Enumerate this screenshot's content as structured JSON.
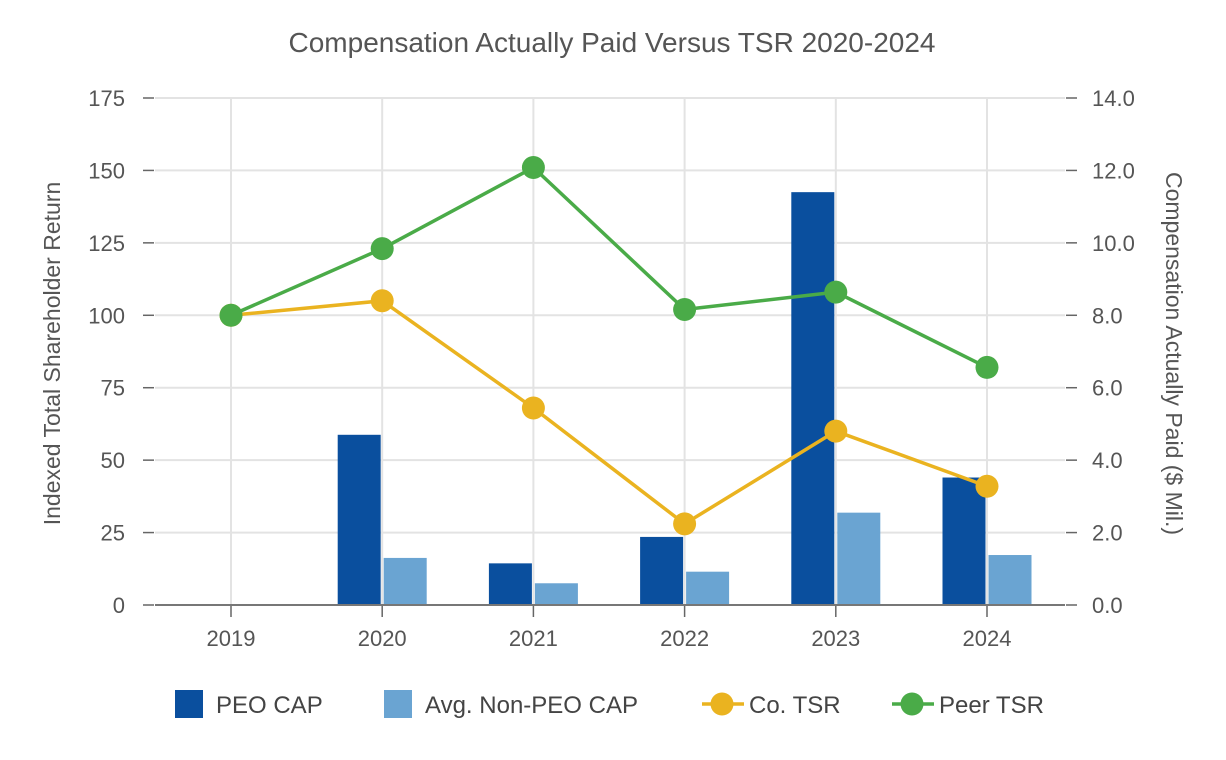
{
  "chart_data": {
    "type": "bar",
    "title": "Compensation Actually Paid Versus TSR 2020-2024",
    "categories": [
      "2019",
      "2020",
      "2021",
      "2022",
      "2023",
      "2024"
    ],
    "left_axis": {
      "label": "Indexed Total Shareholder Return",
      "range": [
        0,
        175
      ],
      "ticks": [
        "0",
        "25",
        "50",
        "75",
        "100",
        "125",
        "150",
        "175"
      ]
    },
    "right_axis": {
      "label": "Compensation Actually Paid ($ Mil.)",
      "range": [
        0,
        14
      ],
      "ticks": [
        "0.0",
        "2.0",
        "4.0",
        "6.0",
        "8.0",
        "10.0",
        "12.0",
        "14.0"
      ]
    },
    "grid": true,
    "legend_position": "bottom",
    "series": [
      {
        "name": "PEO CAP",
        "kind": "bar",
        "axis": "right",
        "color": "#0a4f9e",
        "values": [
          null,
          4.7,
          1.15,
          1.88,
          11.4,
          3.52
        ]
      },
      {
        "name": "Avg. Non-PEO CAP",
        "kind": "bar",
        "axis": "right",
        "color": "#6aa4d2",
        "values": [
          null,
          1.3,
          0.6,
          0.92,
          2.55,
          1.38
        ]
      },
      {
        "name": "Co. TSR",
        "kind": "line",
        "axis": "left",
        "color": "#eab320",
        "values": [
          100,
          105,
          68,
          28,
          60,
          41
        ]
      },
      {
        "name": "Peer TSR",
        "kind": "line",
        "axis": "left",
        "color": "#4aab48",
        "values": [
          100,
          123,
          151,
          102,
          108,
          82
        ]
      }
    ]
  }
}
